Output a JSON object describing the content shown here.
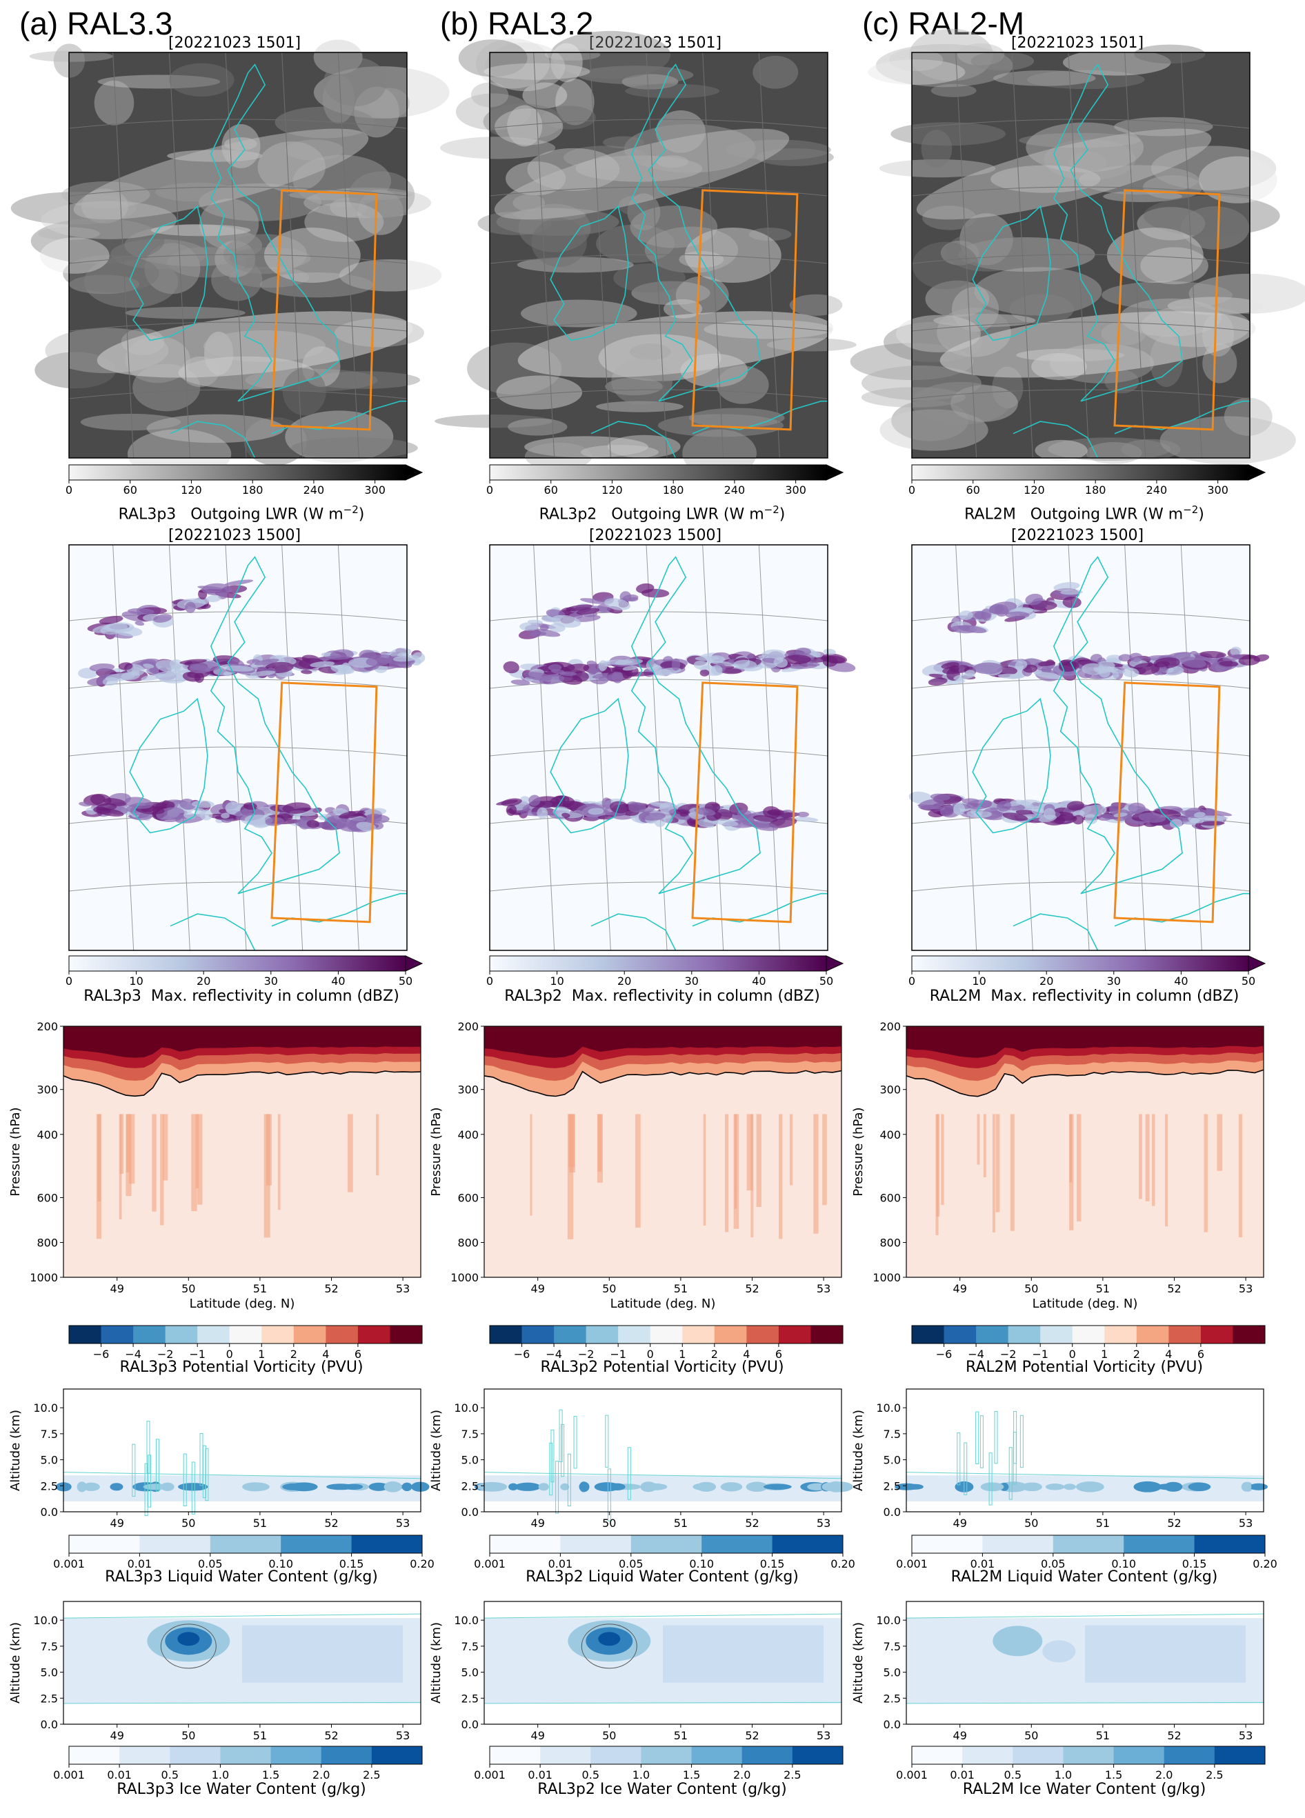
{
  "columns": [
    {
      "key": "a",
      "heading": "(a) RAL3.3",
      "model": "RAL3p3"
    },
    {
      "key": "b",
      "heading": "(b) RAL3.2",
      "model": "RAL3p2"
    },
    {
      "key": "c",
      "heading": "(c) RAL2-M",
      "model": "RAL2M"
    }
  ],
  "rows": {
    "lwr": {
      "timestamp": "[20221023 1501]",
      "label_suffix": "Outgoing LWR (W m",
      "label_exp": "−2",
      "label_close": ")",
      "ticks": [
        0,
        60,
        120,
        180,
        240,
        300
      ],
      "range": [
        0,
        330
      ],
      "colors": [
        "#f5f5f5",
        "#000000"
      ]
    },
    "refl": {
      "timestamp": "[20221023 1500]",
      "label_suffix": "Max. reflectivity in column (dBZ)",
      "ticks": [
        0,
        10,
        20,
        30,
        40,
        50
      ],
      "range": [
        0,
        50
      ],
      "colors": [
        "#f7fbff",
        "#b9c8e2",
        "#8c6bb1",
        "#4d004b"
      ]
    },
    "pv": {
      "label_suffix": "Potential Vorticity (PVU)",
      "ticks": [
        "−6",
        "−4",
        "−2",
        "−1",
        "0",
        "1",
        "2",
        "4",
        "6"
      ],
      "colors": [
        "#053061",
        "#2166ac",
        "#4393c3",
        "#92c5de",
        "#d1e5f0",
        "#f7f7f7",
        "#fddbc7",
        "#f4a582",
        "#d6604d",
        "#b2182b",
        "#67001f"
      ],
      "ylabel": "Pressure (hPa)",
      "yticks": [
        "200",
        "300",
        "400",
        "600",
        "800",
        "1000"
      ],
      "xlabel": "Latitude (deg. N)",
      "xticks": [
        "49",
        "50",
        "51",
        "52",
        "53"
      ]
    },
    "lwc": {
      "label_suffix": "Liquid Water Content (g/kg)",
      "ticks": [
        "0.001",
        "0.01",
        "0.05",
        "0.10",
        "0.15",
        "0.20"
      ],
      "colors": [
        "#f7fbff",
        "#deebf7",
        "#9ecae1",
        "#4292c6",
        "#08519c"
      ],
      "ylabel": "Altitude (km)",
      "yticks": [
        "0.0",
        "2.5",
        "5.0",
        "7.5",
        "10.0"
      ],
      "xticks": [
        "49",
        "50",
        "51",
        "52",
        "53"
      ]
    },
    "iwc": {
      "label_suffix": "Ice Water Content (g/kg)",
      "ticks": [
        "0.001",
        "0.01",
        "0.5",
        "1.0",
        "1.5",
        "2.0",
        "2.5"
      ],
      "colors": [
        "#f7fbff",
        "#deebf7",
        "#c6dbef",
        "#9ecae1",
        "#6baed6",
        "#3182bd",
        "#08519c"
      ],
      "ylabel": "Altitude (km)",
      "yticks": [
        "0.0",
        "2.5",
        "5.0",
        "7.5",
        "10.0"
      ],
      "xticks": [
        "49",
        "50",
        "51",
        "52",
        "53"
      ]
    }
  }
}
